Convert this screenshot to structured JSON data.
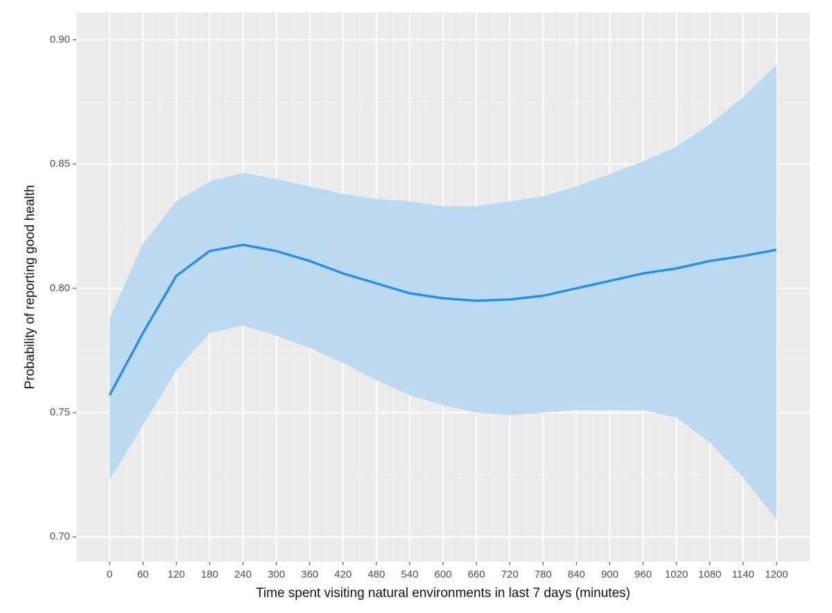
{
  "chart_data": {
    "type": "line",
    "x_label": "Time spent visiting natural environments in last 7 days (minutes)",
    "y_label": "Probability of reporting good health",
    "x": [
      0,
      60,
      120,
      180,
      240,
      300,
      360,
      420,
      480,
      540,
      600,
      660,
      720,
      780,
      840,
      900,
      960,
      1020,
      1080,
      1140,
      1200
    ],
    "values": [
      0.757,
      0.782,
      0.805,
      0.815,
      0.8175,
      0.815,
      0.811,
      0.806,
      0.802,
      0.798,
      0.796,
      0.795,
      0.7955,
      0.797,
      0.8,
      0.803,
      0.806,
      0.808,
      0.811,
      0.813,
      0.8155
    ],
    "lower": [
      0.723,
      0.745,
      0.767,
      0.782,
      0.785,
      0.781,
      0.776,
      0.77,
      0.763,
      0.757,
      0.753,
      0.75,
      0.749,
      0.75,
      0.751,
      0.751,
      0.751,
      0.748,
      0.738,
      0.724,
      0.707
    ],
    "upper": [
      0.788,
      0.818,
      0.835,
      0.843,
      0.8465,
      0.844,
      0.841,
      0.838,
      0.836,
      0.835,
      0.833,
      0.833,
      0.835,
      0.837,
      0.841,
      0.846,
      0.851,
      0.857,
      0.866,
      0.877,
      0.89
    ],
    "color": "#2a8fe0",
    "band_color": "#bcd9f2",
    "xlim": [
      -60,
      1260
    ],
    "ylim": [
      0.69,
      0.911
    ],
    "xticks": [
      0,
      60,
      120,
      180,
      240,
      300,
      360,
      420,
      480,
      540,
      600,
      660,
      720,
      780,
      840,
      900,
      960,
      1020,
      1080,
      1140,
      1200
    ],
    "yticks": [
      {
        "value": 0.7,
        "label": "0.70"
      },
      0.75,
      {
        "value": 0.8,
        "label": "0.80"
      },
      0.85,
      {
        "value": 0.9,
        "label": "0.90"
      }
    ],
    "grid": true
  }
}
